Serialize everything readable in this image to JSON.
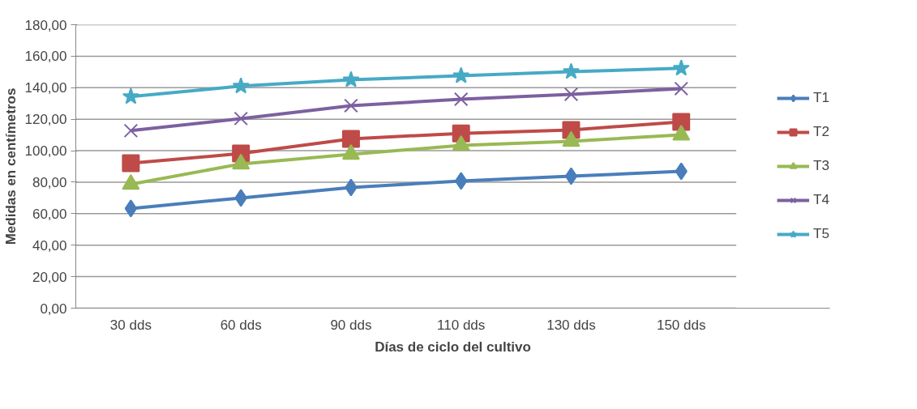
{
  "chart_data": {
    "type": "line",
    "xlabel": "Días de ciclo del cultivo",
    "ylabel": "Medidas en centímetros",
    "categories": [
      "30 dds",
      "60 dds",
      "90 dds",
      "110 dds",
      "130 dds",
      "150 dds"
    ],
    "series": [
      {
        "name": "T1",
        "color": "#4a7ebb",
        "marker": "diamond",
        "values": [
          63.3,
          70.0,
          76.6,
          80.8,
          83.8,
          86.9
        ]
      },
      {
        "name": "T2",
        "color": "#be4b48",
        "marker": "square",
        "values": [
          92.0,
          98.2,
          107.5,
          111.0,
          113.2,
          118.3
        ]
      },
      {
        "name": "T3",
        "color": "#98b954",
        "marker": "triangle",
        "values": [
          78.7,
          91.6,
          97.7,
          103.4,
          106.0,
          110.0
        ]
      },
      {
        "name": "T4",
        "color": "#7d60a0",
        "marker": "cross",
        "values": [
          112.7,
          120.4,
          128.6,
          132.7,
          135.8,
          139.4
        ]
      },
      {
        "name": "T5",
        "color": "#46aac5",
        "marker": "star",
        "values": [
          134.3,
          141.0,
          145.0,
          147.6,
          150.2,
          152.3
        ]
      }
    ],
    "ylim": [
      0,
      180
    ],
    "yticks": [
      {
        "value": 0,
        "label": "0,00"
      },
      {
        "value": 20,
        "label": "20,00"
      },
      {
        "value": 40,
        "label": "40,00"
      },
      {
        "value": 60,
        "label": "60,00"
      },
      {
        "value": 80,
        "label": "80,00"
      },
      {
        "value": 100,
        "label": "100,00"
      },
      {
        "value": 120,
        "label": "120,00"
      },
      {
        "value": 140,
        "label": "140,00"
      },
      {
        "value": 160,
        "label": "160,00"
      },
      {
        "value": 180,
        "label": "180,00"
      }
    ],
    "grid": "y",
    "legend": "right",
    "line_style": "solid"
  }
}
